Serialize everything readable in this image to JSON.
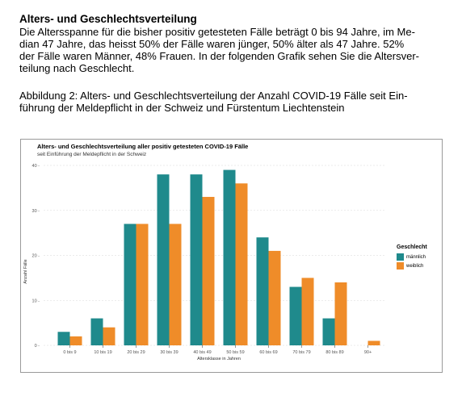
{
  "document": {
    "heading": "Alters- und Geschlechtsverteilung",
    "paragraph_lines": [
      "Die Altersspanne für die bisher positiv getesteten Fälle beträgt 0 bis 94 Jahre, im Me-",
      "dian 47 Jahre, das heisst 50% der Fälle waren jünger, 50% älter als 47 Jahre. 52%",
      "der Fälle waren Männer, 48% Frauen. In der folgenden Grafik sehen Sie die Altersver-",
      "teilung nach Geschlecht."
    ],
    "caption_lines": [
      "Abbildung 2: Alters- und Geschlechtsverteilung der Anzahl COVID-19 Fälle seit Ein-",
      "führung der Meldepflicht in der Schweiz und Fürstentum Liechtenstein"
    ]
  },
  "chart_data": {
    "type": "bar",
    "title": "Alters- und Geschlechtsverteilung aller positiv getesteten COVID-19 Fälle",
    "subtitle": "seit Einführung der Meldepflicht in der Schweiz",
    "xlabel": "Altersklasse in Jahren",
    "ylabel": "Anzahl Fälle",
    "categories": [
      "0 bis 9",
      "10 bis 19",
      "20 bis 29",
      "30 bis 39",
      "40 bis 49",
      "50 bis 59",
      "60 bis 69",
      "70 bis 79",
      "80 bis 89",
      "90+"
    ],
    "series": [
      {
        "name": "männlich",
        "color": "#1f8a8c",
        "values": [
          3,
          6,
          27,
          38,
          38,
          39,
          24,
          13,
          6,
          0
        ]
      },
      {
        "name": "weiblich",
        "color": "#ef8c29",
        "values": [
          2,
          4,
          27,
          27,
          33,
          36,
          21,
          15,
          14,
          1
        ]
      }
    ],
    "ylim": [
      0,
      40
    ],
    "yticks": [
      0,
      10,
      20,
      30,
      40
    ],
    "grid": true,
    "legend_title": "Geschlecht",
    "legend_position": "right"
  }
}
